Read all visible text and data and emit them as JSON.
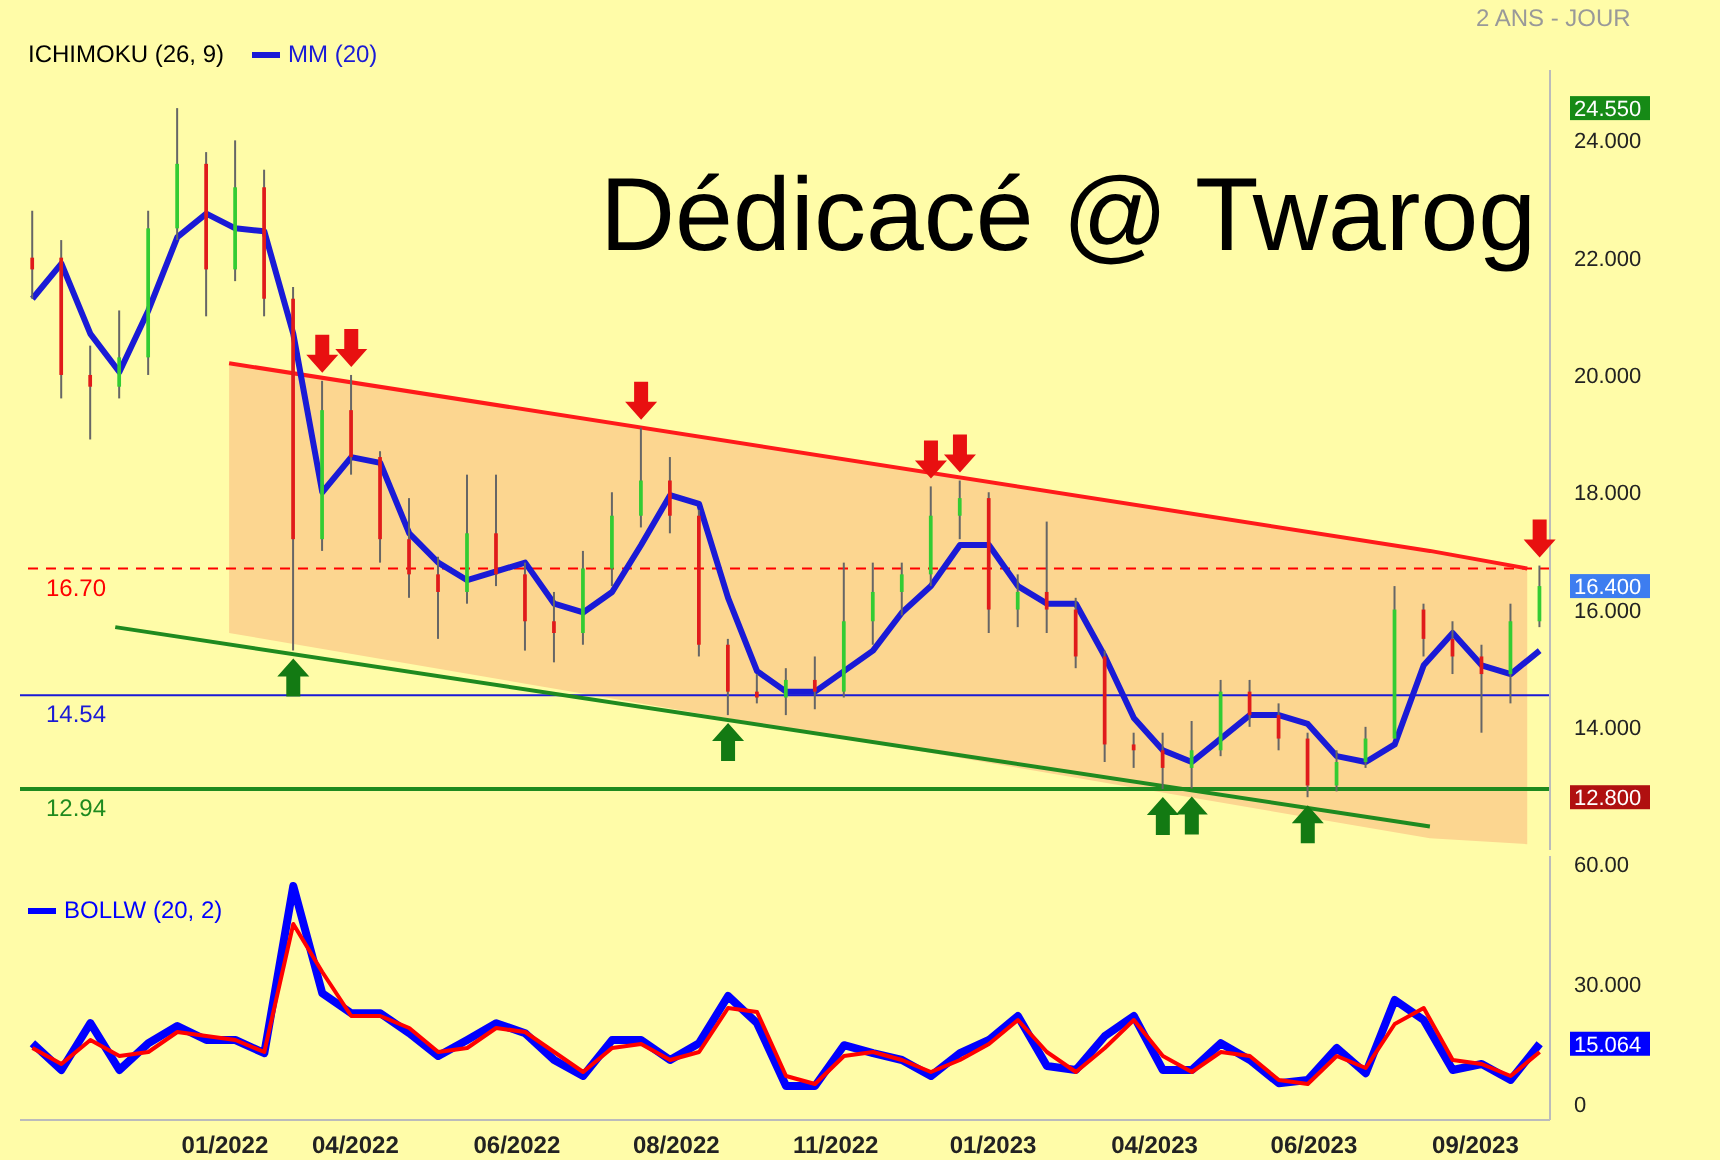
{
  "chart_data": [
    {
      "type": "candlestick",
      "subtitle": "2 ANS - JOUR",
      "legend_title": "ICHIMOKU (26, 9)",
      "legend": "top left",
      "tick_labels": "y",
      "annotations": [
        "Dédicacé @ Twarog"
      ],
      "x": [
        "2021-10-11",
        "2021-10-25",
        "2021-11-08",
        "2021-11-22",
        "2021-12-06",
        "2021-12-20",
        "2022-01-03",
        "2022-01-17",
        "2022-01-31",
        "2022-02-14",
        "2022-02-28",
        "2022-03-14",
        "2022-03-28",
        "2022-04-11",
        "2022-04-25",
        "2022-05-09",
        "2022-05-23",
        "2022-06-06",
        "2022-06-20",
        "2022-07-04",
        "2022-07-18",
        "2022-08-01",
        "2022-08-15",
        "2022-08-29",
        "2022-09-12",
        "2022-09-26",
        "2022-10-10",
        "2022-10-24",
        "2022-11-07",
        "2022-11-21",
        "2022-12-05",
        "2022-12-19",
        "2023-01-02",
        "2023-01-16",
        "2023-01-30",
        "2023-02-13",
        "2023-02-27",
        "2023-03-13",
        "2023-03-27",
        "2023-04-10",
        "2023-04-24",
        "2023-05-08",
        "2023-05-22",
        "2023-06-05",
        "2023-06-19",
        "2023-07-03",
        "2023-07-17",
        "2023-07-31",
        "2023-08-14",
        "2023-08-28",
        "2023-09-11",
        "2023-09-25",
        "2023-10-09"
      ],
      "ohlc": [
        [
          22.0,
          22.8,
          21.3,
          21.8
        ],
        [
          22.0,
          22.3,
          19.6,
          20.0
        ],
        [
          20.0,
          20.5,
          18.9,
          19.8
        ],
        [
          19.8,
          21.1,
          19.6,
          20.3
        ],
        [
          20.3,
          22.8,
          20.0,
          22.5
        ],
        [
          22.5,
          24.55,
          22.3,
          23.6
        ],
        [
          23.6,
          23.8,
          21.0,
          21.8
        ],
        [
          21.8,
          24.0,
          21.6,
          23.2
        ],
        [
          23.2,
          23.5,
          21.0,
          21.3
        ],
        [
          21.3,
          21.5,
          15.3,
          17.2
        ],
        [
          17.2,
          19.9,
          17.0,
          19.4
        ],
        [
          19.4,
          20.0,
          18.3,
          18.6
        ],
        [
          18.6,
          18.7,
          16.8,
          17.2
        ],
        [
          17.2,
          17.9,
          16.2,
          16.6
        ],
        [
          16.6,
          16.9,
          15.5,
          16.3
        ],
        [
          16.3,
          18.3,
          16.1,
          17.3
        ],
        [
          17.3,
          18.3,
          16.4,
          16.6
        ],
        [
          16.6,
          16.8,
          15.3,
          15.8
        ],
        [
          15.8,
          16.3,
          15.1,
          15.6
        ],
        [
          15.6,
          17.0,
          15.4,
          16.7
        ],
        [
          16.7,
          18.0,
          16.4,
          17.6
        ],
        [
          17.6,
          19.1,
          17.4,
          18.2
        ],
        [
          18.2,
          18.6,
          17.3,
          17.6
        ],
        [
          17.6,
          17.7,
          15.2,
          15.4
        ],
        [
          15.4,
          15.5,
          14.2,
          14.6
        ],
        [
          14.6,
          14.9,
          14.4,
          14.5
        ],
        [
          14.5,
          15.0,
          14.2,
          14.8
        ],
        [
          14.8,
          15.2,
          14.3,
          14.6
        ],
        [
          14.6,
          16.8,
          14.5,
          15.8
        ],
        [
          15.8,
          16.8,
          15.4,
          16.3
        ],
        [
          16.3,
          16.8,
          15.9,
          16.6
        ],
        [
          16.6,
          18.1,
          16.4,
          17.6
        ],
        [
          17.6,
          18.2,
          17.2,
          17.9
        ],
        [
          17.9,
          18.0,
          15.6,
          16.0
        ],
        [
          16.0,
          16.6,
          15.7,
          16.3
        ],
        [
          16.3,
          17.5,
          15.6,
          16.0
        ],
        [
          16.0,
          16.2,
          15.0,
          15.2
        ],
        [
          15.2,
          15.3,
          13.4,
          13.7
        ],
        [
          13.7,
          13.9,
          13.3,
          13.6
        ],
        [
          13.6,
          13.9,
          12.94,
          13.3
        ],
        [
          13.3,
          14.1,
          12.95,
          13.6
        ],
        [
          13.6,
          14.8,
          13.5,
          14.6
        ],
        [
          14.6,
          14.8,
          14.0,
          14.2
        ],
        [
          14.2,
          14.4,
          13.6,
          13.8
        ],
        [
          13.8,
          13.9,
          12.8,
          13.0
        ],
        [
          13.0,
          13.6,
          12.9,
          13.4
        ],
        [
          13.4,
          14.0,
          13.3,
          13.8
        ],
        [
          13.8,
          16.4,
          13.8,
          16.0
        ],
        [
          16.0,
          16.1,
          15.2,
          15.5
        ],
        [
          15.5,
          15.8,
          14.9,
          15.2
        ],
        [
          15.2,
          15.4,
          13.9,
          14.9
        ],
        [
          14.9,
          16.1,
          14.4,
          15.8
        ],
        [
          15.8,
          16.75,
          15.7,
          16.4
        ]
      ],
      "colors": [
        "#e01b1b",
        "#e01b1b",
        "#e01b1b",
        "#33cc33",
        "#33cc33",
        "#33cc33",
        "#e01b1b",
        "#33cc33",
        "#e01b1b",
        "#e01b1b",
        "#33cc33",
        "#e01b1b",
        "#e01b1b",
        "#e01b1b",
        "#e01b1b",
        "#33cc33",
        "#e01b1b",
        "#e01b1b",
        "#e01b1b",
        "#33cc33",
        "#33cc33",
        "#33cc33",
        "#e01b1b",
        "#e01b1b",
        "#e01b1b",
        "#e01b1b",
        "#33cc33",
        "#e01b1b",
        "#33cc33",
        "#33cc33",
        "#33cc33",
        "#33cc33",
        "#33cc33",
        "#e01b1b",
        "#33cc33",
        "#e01b1b",
        "#e01b1b",
        "#e01b1b",
        "#e01b1b",
        "#e01b1b",
        "#33cc33",
        "#33cc33",
        "#e01b1b",
        "#e01b1b",
        "#e01b1b",
        "#33cc33",
        "#33cc33",
        "#33cc33",
        "#e01b1b",
        "#e01b1b",
        "#e01b1b",
        "#33cc33",
        "#33cc33"
      ],
      "series": [
        {
          "type": "line",
          "color": "#ff1a1a",
          "x": [
            "2022-01-14",
            "2023-08-17",
            "2023-10-03"
          ],
          "values": [
            20.2,
            17.0,
            16.7
          ],
          "lower": [
            15.6,
            12.1,
            12.0
          ],
          "upper": [
            20.2,
            17.0,
            16.7
          ]
        },
        {
          "type": "line",
          "color": "#1f8a1f",
          "x": [
            "2021-11-20",
            "2023-08-17"
          ],
          "values": [
            15.7,
            12.3
          ]
        },
        {
          "type": "line",
          "name": "MM (20)",
          "color": "#1a1ad6",
          "values": [
            21.3,
            21.9,
            20.7,
            20.05,
            21.1,
            22.35,
            22.75,
            22.5,
            22.45,
            20.7,
            18.0,
            18.6,
            18.5,
            17.3,
            16.8,
            16.5,
            16.65,
            16.8,
            16.1,
            15.95,
            16.3,
            17.1,
            17.95,
            17.8,
            16.2,
            14.95,
            14.6,
            14.6,
            14.95,
            15.3,
            15.95,
            16.4,
            17.1,
            17.1,
            16.4,
            16.1,
            16.1,
            15.2,
            14.15,
            13.6,
            13.4,
            13.8,
            14.2,
            14.2,
            14.05,
            13.5,
            13.4,
            13.7,
            15.05,
            15.6,
            15.05,
            14.9,
            15.3
          ]
        }
      ],
      "ref_lines": [
        {
          "axis": "y",
          "value": 16.7,
          "label": "16.70",
          "color": "#ff0000",
          "line_style": "dashed"
        },
        {
          "axis": "y",
          "value": 14.54,
          "label": "14.54",
          "color": "#1a1ad6",
          "line_style": "solid"
        },
        {
          "axis": "y",
          "value": 12.94,
          "label": "12.94",
          "color": "#1f8a1f",
          "line_style": "solid"
        }
      ],
      "xlim": [
        "2021-10-05",
        "2023-10-14"
      ],
      "ylim": [
        11.9,
        25.2
      ],
      "yticks": [
        {
          "value": 14,
          "label": "14.000"
        },
        {
          "value": 16,
          "label": "16.000"
        },
        {
          "value": 18,
          "label": "18.000"
        },
        {
          "value": 20,
          "label": "20.000"
        },
        {
          "value": 22,
          "label": "22.000"
        },
        {
          "value": 24,
          "label": "24.000"
        },
        {
          "value": 24.55,
          "label": "24.550"
        },
        {
          "value": 16.4,
          "label": "16.400"
        },
        {
          "value": 12.8,
          "label": "12.800"
        }
      ]
    },
    {
      "type": "line",
      "legend": "top left",
      "x": [
        "2021-10-11",
        "2021-10-25",
        "2021-11-08",
        "2021-11-22",
        "2021-12-06",
        "2021-12-20",
        "2022-01-03",
        "2022-01-17",
        "2022-01-31",
        "2022-02-14",
        "2022-02-28",
        "2022-03-14",
        "2022-03-28",
        "2022-04-11",
        "2022-04-25",
        "2022-05-09",
        "2022-05-23",
        "2022-06-06",
        "2022-06-20",
        "2022-07-04",
        "2022-07-18",
        "2022-08-01",
        "2022-08-15",
        "2022-08-29",
        "2022-09-12",
        "2022-09-26",
        "2022-10-10",
        "2022-10-24",
        "2022-11-07",
        "2022-11-21",
        "2022-12-05",
        "2022-12-19",
        "2023-01-02",
        "2023-01-16",
        "2023-01-30",
        "2023-02-13",
        "2023-02-27",
        "2023-03-13",
        "2023-03-27",
        "2023-04-10",
        "2023-04-24",
        "2023-05-08",
        "2023-05-22",
        "2023-06-05",
        "2023-06-19",
        "2023-07-03",
        "2023-07-17",
        "2023-07-31",
        "2023-08-14",
        "2023-08-28",
        "2023-09-11",
        "2023-09-25",
        "2023-10-09"
      ],
      "series": [
        {
          "name": "BOLLW (20, 2)",
          "color": "#0000ff",
          "values": [
            15.2,
            8.5,
            20.2,
            8.5,
            15.2,
            19.5,
            16,
            16,
            12.7,
            54.5,
            27.7,
            22.7,
            22.7,
            17.7,
            12,
            16,
            20.2,
            17.7,
            11,
            7,
            16,
            16,
            11,
            15.2,
            27,
            20.2,
            4.5,
            4.5,
            14.7,
            12.7,
            11,
            7,
            12.7,
            16,
            22,
            9.5,
            8.5,
            17,
            22,
            8.5,
            8.5,
            15.2,
            11,
            5.2,
            6,
            14,
            7.7,
            26,
            21,
            8.5,
            10,
            6,
            15.064
          ]
        },
        {
          "color": "#ff0000",
          "values": [
            14,
            10,
            16,
            12,
            13,
            18,
            17,
            16,
            13,
            45,
            33,
            22,
            22,
            19,
            13,
            14,
            19,
            18,
            13,
            8,
            14,
            15,
            11,
            13,
            24,
            23,
            7,
            5,
            12,
            13,
            11,
            8,
            11,
            15,
            21,
            13,
            8,
            14,
            21,
            12,
            8,
            13,
            12,
            6,
            5,
            12,
            9,
            20,
            24,
            11,
            10,
            7,
            13
          ]
        }
      ],
      "xlim": [
        "2021-10-05",
        "2023-10-14"
      ],
      "ylim": [
        -4,
        62
      ],
      "xticks": [
        {
          "value": "2022-01-12",
          "label": "01/2022"
        },
        {
          "value": "2022-03-16",
          "label": "04/2022"
        },
        {
          "value": "2022-06-02",
          "label": "06/2022"
        },
        {
          "value": "2022-08-18",
          "label": "08/2022"
        },
        {
          "value": "2022-11-03",
          "label": "11/2022"
        },
        {
          "value": "2023-01-18",
          "label": "01/2023"
        },
        {
          "value": "2023-04-06",
          "label": "04/2023"
        },
        {
          "value": "2023-06-22",
          "label": "06/2023"
        },
        {
          "value": "2023-09-08",
          "label": "09/2023"
        }
      ],
      "yticks": [
        0,
        {
          "value": 30,
          "label": "30.000"
        },
        {
          "value": 60,
          "label": "60.00"
        },
        {
          "value": 15.064,
          "label": "15.064"
        }
      ]
    }
  ]
}
